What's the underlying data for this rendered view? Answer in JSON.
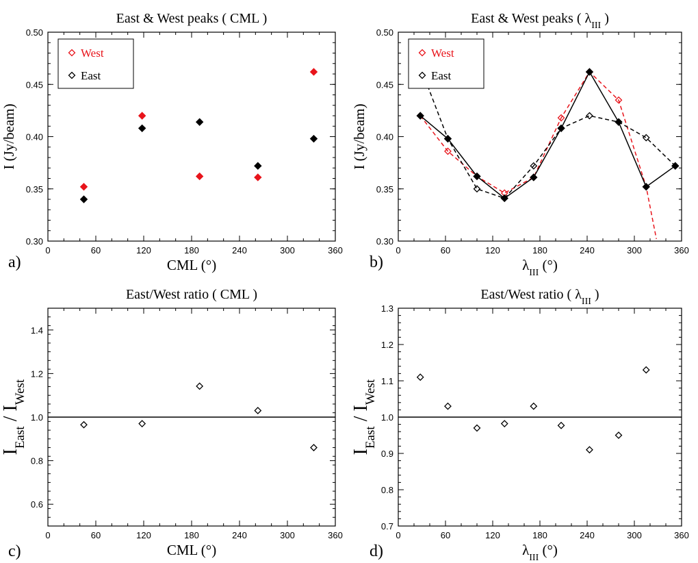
{
  "chart_data": [
    {
      "type": "scatter",
      "panel": "a)",
      "title": "East & West peaks ( CML )",
      "xlabel": "CML (°)",
      "ylabel": "I (Jy/beam)",
      "xlim": [
        0,
        360
      ],
      "ylim": [
        0.3,
        0.5
      ],
      "xticks": [
        "0",
        "60",
        "120",
        "180",
        "240",
        "300",
        "360"
      ],
      "yticks": [
        "0.30",
        "0.35",
        "0.40",
        "0.45",
        "0.50"
      ],
      "legend_position": "top-left",
      "series": [
        {
          "name": "West",
          "color": "#e8141b",
          "marker": "filled-diamond",
          "legend_marker": "open-diamond",
          "line": "none",
          "x": [
            45,
            118,
            190,
            263,
            333
          ],
          "y": [
            0.352,
            0.42,
            0.362,
            0.361,
            0.462
          ]
        },
        {
          "name": "East",
          "color": "#000000",
          "marker": "filled-diamond",
          "legend_marker": "open-diamond",
          "line": "none",
          "x": [
            45,
            118,
            190,
            263,
            333
          ],
          "y": [
            0.34,
            0.408,
            0.414,
            0.372,
            0.398
          ]
        }
      ]
    },
    {
      "type": "line",
      "panel": "b)",
      "title": "East & West peaks ( λ_III )",
      "xlabel": "λ_III (°)",
      "ylabel": "I (Jy/beam)",
      "xlim": [
        0,
        360
      ],
      "ylim": [
        0.3,
        0.5
      ],
      "xticks": [
        "0",
        "60",
        "120",
        "180",
        "240",
        "300",
        "360"
      ],
      "yticks": [
        "0.30",
        "0.35",
        "0.40",
        "0.45",
        "0.50"
      ],
      "legend_position": "top-left",
      "series": [
        {
          "name": "West",
          "color": "#e8141b",
          "marker": "open-diamond",
          "legend_marker": "open-diamond",
          "line": "dashed",
          "x": [
            28,
            63,
            100,
            135,
            172,
            207,
            243,
            280,
            315,
            328
          ],
          "y": [
            0.42,
            0.386,
            0.362,
            0.346,
            0.361,
            0.418,
            0.462,
            0.435,
            0.352,
            0.302
          ]
        },
        {
          "name": "East",
          "color": "#000000",
          "marker": "open-diamond",
          "legend_marker": "open-diamond",
          "line": "dashed",
          "x": [
            28,
            63,
            100,
            135,
            172,
            207,
            243,
            280,
            315,
            352
          ],
          "y": [
            0.467,
            0.398,
            0.35,
            0.341,
            0.372,
            0.408,
            0.42,
            0.414,
            0.399,
            0.372
          ]
        },
        {
          "name": "",
          "color": "#000000",
          "marker": "filled-diamond",
          "line": "solid",
          "x": [
            28,
            63,
            100,
            135,
            172,
            207,
            243,
            280,
            315,
            352
          ],
          "y": [
            0.42,
            0.398,
            0.362,
            0.341,
            0.361,
            0.408,
            0.462,
            0.414,
            0.352,
            0.372
          ]
        }
      ]
    },
    {
      "type": "scatter",
      "panel": "c)",
      "title": "East/West ratio ( CML )",
      "xlabel": "CML (°)",
      "ylabel": "I_East / I_West",
      "xlim": [
        0,
        360
      ],
      "ylim": [
        0.5,
        1.5
      ],
      "xticks": [
        "0",
        "60",
        "120",
        "180",
        "240",
        "300",
        "360"
      ],
      "yticks": [
        "0.6",
        "0.8",
        "1.0",
        "1.2",
        "1.4"
      ],
      "reference_line": 1.0,
      "series": [
        {
          "name": "",
          "color": "#000000",
          "marker": "open-diamond",
          "line": "none",
          "x": [
            45,
            118,
            190,
            263,
            333
          ],
          "y": [
            0.965,
            0.97,
            1.142,
            1.03,
            0.86
          ]
        }
      ]
    },
    {
      "type": "scatter",
      "panel": "d)",
      "title": "East/West ratio ( λ_III )",
      "xlabel": "λ_III (°)",
      "ylabel": "I_East / I_West",
      "xlim": [
        0,
        360
      ],
      "ylim": [
        0.7,
        1.3
      ],
      "xticks": [
        "0",
        "60",
        "120",
        "180",
        "240",
        "300",
        "360"
      ],
      "yticks": [
        "0.7",
        "0.8",
        "0.9",
        "1.0",
        "1.1",
        "1.2",
        "1.3"
      ],
      "reference_line": 1.0,
      "series": [
        {
          "name": "",
          "color": "#000000",
          "marker": "open-diamond",
          "line": "none",
          "x": [
            28,
            63,
            100,
            135,
            172,
            207,
            243,
            280,
            315
          ],
          "y": [
            1.11,
            1.03,
            0.97,
            0.982,
            1.03,
            0.977,
            0.91,
            0.95,
            1.13
          ]
        }
      ]
    }
  ]
}
